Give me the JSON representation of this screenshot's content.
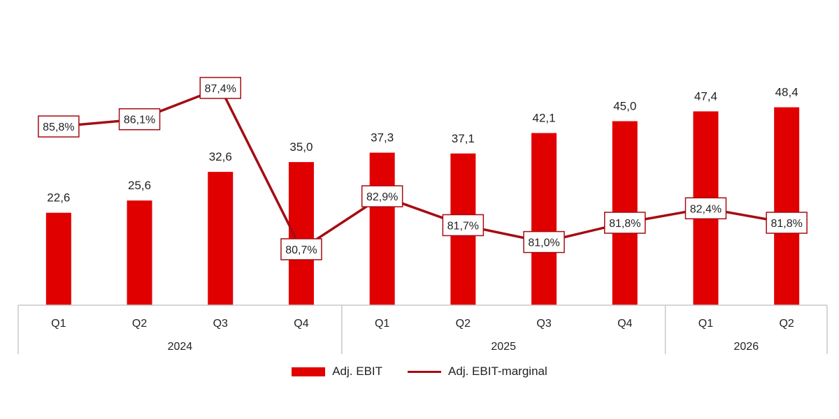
{
  "colors": {
    "bar": "#e00000",
    "line": "#a50c12",
    "marker_border": "#a50c12",
    "axis": "#c8c8c8",
    "text": "#222222"
  },
  "chart_data": {
    "type": "bar",
    "categories": [
      "Q1",
      "Q2",
      "Q3",
      "Q4",
      "Q1",
      "Q2",
      "Q3",
      "Q4",
      "Q1",
      "Q2"
    ],
    "groups": [
      {
        "label": "2024",
        "count": 4
      },
      {
        "label": "2025",
        "count": 4
      },
      {
        "label": "2026",
        "count": 2
      }
    ],
    "series": [
      {
        "name": "Adj. EBIT",
        "type": "bar",
        "values": [
          22.6,
          25.6,
          32.6,
          35.0,
          37.3,
          37.1,
          42.1,
          45.0,
          47.4,
          48.4
        ],
        "labels": [
          "22,6",
          "25,6",
          "32,6",
          "35,0",
          "37,3",
          "37,1",
          "42,1",
          "45,0",
          "47,4",
          "48,4"
        ]
      },
      {
        "name": "Adj. EBIT-marginal",
        "type": "line",
        "values": [
          85.8,
          86.1,
          87.4,
          80.7,
          82.9,
          81.7,
          81.0,
          81.8,
          82.4,
          81.8
        ],
        "labels": [
          "85,8%",
          "86,1%",
          "87,4%",
          "80,7%",
          "82,9%",
          "81,7%",
          "81,0%",
          "81,8%",
          "82,4%",
          "81,8%"
        ]
      }
    ],
    "bar_ylim": [
      0,
      55
    ],
    "line_ylim": [
      78,
      88.5
    ],
    "legend_position": "bottom"
  }
}
